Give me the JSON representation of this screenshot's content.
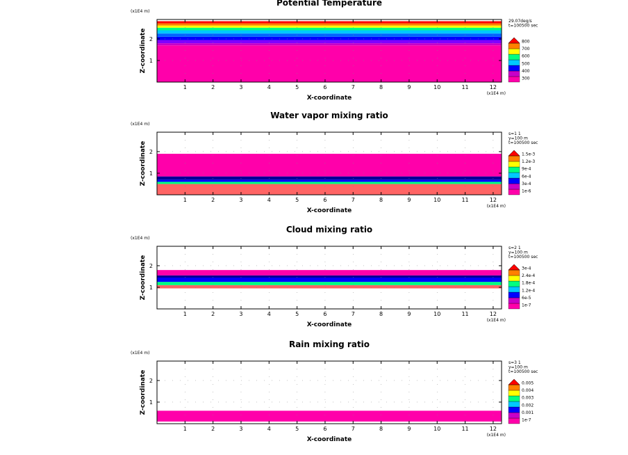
{
  "chart_data": [
    {
      "type": "heatmap",
      "title": "Potential Temperature",
      "xlabel": "X-coordinate",
      "ylabel": "Z-coordinate",
      "x_unit": "(x1E4 m)",
      "z_unit": "(x1E4 m)",
      "xticks": [
        "1",
        "2",
        "3",
        "4",
        "5",
        "6",
        "7",
        "8",
        "9",
        "10",
        "11",
        "12"
      ],
      "zticks": [
        "1",
        "2"
      ],
      "xlim": [
        0,
        12.3
      ],
      "zlim": [
        0,
        2.9
      ],
      "info": [
        "29.07deg/s",
        "t=100500 sec"
      ],
      "legend_labels": [
        "300",
        "400",
        "500",
        "600",
        "700",
        "800"
      ],
      "colors": [
        "#ff00aa",
        "#c800c8",
        "#0000ff",
        "#00c8ff",
        "#00ff80",
        "#ffff00",
        "#ff8000",
        "#ff0000"
      ],
      "field_layers": [
        {
          "color": "#ff00aa",
          "z": [
            0,
            1.7
          ]
        },
        {
          "color": "#c800c8",
          "z": [
            1.7,
            1.8
          ]
        },
        {
          "color": "#8000ff",
          "z": [
            1.8,
            1.95
          ]
        },
        {
          "color": "#0000ff",
          "z": [
            1.95,
            2.1
          ]
        },
        {
          "color": "#0064ff",
          "z": [
            2.1,
            2.25
          ]
        },
        {
          "color": "#00c8ff",
          "z": [
            2.25,
            2.4
          ]
        },
        {
          "color": "#00ff80",
          "z": [
            2.4,
            2.52
          ]
        },
        {
          "color": "#ffff00",
          "z": [
            2.52,
            2.62
          ]
        },
        {
          "color": "#ff8000",
          "z": [
            2.62,
            2.72
          ]
        },
        {
          "color": "#ff0000",
          "z": [
            2.72,
            2.82
          ]
        }
      ]
    },
    {
      "type": "heatmap",
      "title": "Water vapor mixing ratio",
      "xlabel": "X-coordinate",
      "ylabel": "Z-coordinate",
      "x_unit": "(x1E4 m)",
      "z_unit": "(x1E4 m)",
      "xticks": [
        "1",
        "2",
        "3",
        "4",
        "5",
        "6",
        "7",
        "8",
        "9",
        "10",
        "11",
        "12"
      ],
      "zticks": [
        "1",
        "2"
      ],
      "xlim": [
        0,
        12.3
      ],
      "zlim": [
        0,
        2.9
      ],
      "info": [
        "s=1 1",
        "y=100 m",
        "t=100500 sec"
      ],
      "legend_labels": [
        "1e-6",
        "3e-4",
        "6e-4",
        "9e-4",
        "1.2e-3",
        "1.5e-3"
      ],
      "colors": [
        "#ff00aa",
        "#c800c8",
        "#0000ff",
        "#00c8ff",
        "#00ff80",
        "#ffff00",
        "#ff8000",
        "#ff0000"
      ],
      "field_layers": [
        {
          "color": "#ff6464",
          "z": [
            0,
            0.5
          ]
        },
        {
          "color": "#00ff80",
          "z": [
            0.5,
            0.6
          ]
        },
        {
          "color": "#0000ff",
          "z": [
            0.6,
            0.7
          ]
        },
        {
          "color": "#000096",
          "z": [
            0.7,
            0.85
          ]
        },
        {
          "color": "#ff00aa",
          "z": [
            0.85,
            1.9
          ]
        }
      ]
    },
    {
      "type": "heatmap",
      "title": "Cloud mixing ratio",
      "xlabel": "X-coordinate",
      "ylabel": "Z-coordinate",
      "x_unit": "(x1E4 m)",
      "z_unit": "(x1E4 m)",
      "xticks": [
        "1",
        "2",
        "3",
        "4",
        "5",
        "6",
        "7",
        "8",
        "9",
        "10",
        "11",
        "12"
      ],
      "zticks": [
        "1",
        "2"
      ],
      "xlim": [
        0,
        12.3
      ],
      "zlim": [
        0,
        2.9
      ],
      "info": [
        "s=2 1",
        "y=100 m",
        "t=100500 sec"
      ],
      "legend_labels": [
        "1e-7",
        "6e-5",
        "1.2e-4",
        "1.8e-4",
        "2.4e-4",
        "3e-4"
      ],
      "colors": [
        "#ff00aa",
        "#c800c8",
        "#0000ff",
        "#00c8ff",
        "#00ff80",
        "#ffff00",
        "#ff8000",
        "#ff0000"
      ],
      "field_layers": [
        {
          "color": "#ff6464",
          "z": [
            0.95,
            1.1
          ]
        },
        {
          "color": "#00ff80",
          "z": [
            1.1,
            1.25
          ]
        },
        {
          "color": "#0000ff",
          "z": [
            1.25,
            1.45
          ]
        },
        {
          "color": "#000096",
          "z": [
            1.45,
            1.55
          ]
        },
        {
          "color": "#ff00aa",
          "z": [
            1.55,
            1.8
          ]
        }
      ]
    },
    {
      "type": "heatmap",
      "title": "Rain mixing ratio",
      "xlabel": "X-coordinate",
      "ylabel": "Z-coordinate",
      "x_unit": "(x1E4 m)",
      "z_unit": "(x1E4 m)",
      "xticks": [
        "1",
        "2",
        "3",
        "4",
        "5",
        "6",
        "7",
        "8",
        "9",
        "10",
        "11",
        "12"
      ],
      "zticks": [
        "1",
        "2"
      ],
      "xlim": [
        0,
        12.3
      ],
      "zlim": [
        0,
        2.9
      ],
      "info": [
        "s=3 1",
        "y=100 m",
        "t=100500 sec"
      ],
      "legend_labels": [
        "1e-7",
        "0.001",
        "0.002",
        "0.003",
        "0.004",
        "0.005"
      ],
      "colors": [
        "#ff00aa",
        "#c800c8",
        "#0000ff",
        "#00c8ff",
        "#00ff80",
        "#ffff00",
        "#ff8000",
        "#ff0000"
      ],
      "field_layers": [
        {
          "color": "#ff00aa",
          "z": [
            0.1,
            0.6
          ]
        }
      ]
    }
  ]
}
